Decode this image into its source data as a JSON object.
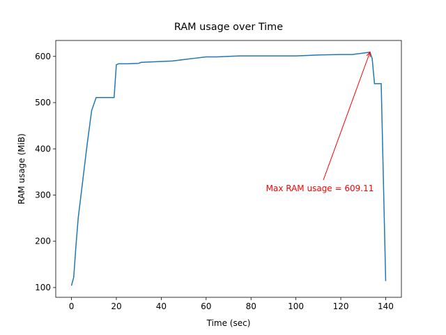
{
  "chart_data": {
    "type": "line",
    "title": "RAM usage over Time",
    "xlabel": "Time (sec)",
    "ylabel": "RAM usage (MiB)",
    "x": [
      0,
      1,
      2,
      3,
      5,
      7,
      9,
      11,
      19,
      20,
      21,
      25,
      30,
      31,
      35,
      40,
      45,
      50,
      55,
      60,
      65,
      70,
      75,
      80,
      90,
      100,
      105,
      110,
      120,
      125,
      130,
      133,
      134,
      135,
      138,
      140
    ],
    "series": [
      {
        "name": "RAM usage",
        "color": "#1f77b4",
        "values": [
          104,
          122,
          190,
          250,
          330,
          410,
          483,
          511,
          511,
          582,
          584,
          584,
          585,
          587,
          588,
          589,
          590,
          593,
          596,
          599,
          599,
          600,
          601,
          601,
          601,
          601,
          602,
          603,
          604,
          604,
          607,
          609.11,
          595,
          541,
          541,
          114
        ]
      }
    ],
    "annotation": {
      "text": "Max RAM usage = 609.11",
      "color": "#ff0000"
    },
    "xlim": [
      -7,
      147
    ],
    "ylim": [
      78.8,
      634.4
    ],
    "xticks": [
      0,
      20,
      40,
      60,
      80,
      100,
      120,
      140
    ],
    "yticks": [
      100,
      200,
      300,
      400,
      500,
      600
    ]
  }
}
